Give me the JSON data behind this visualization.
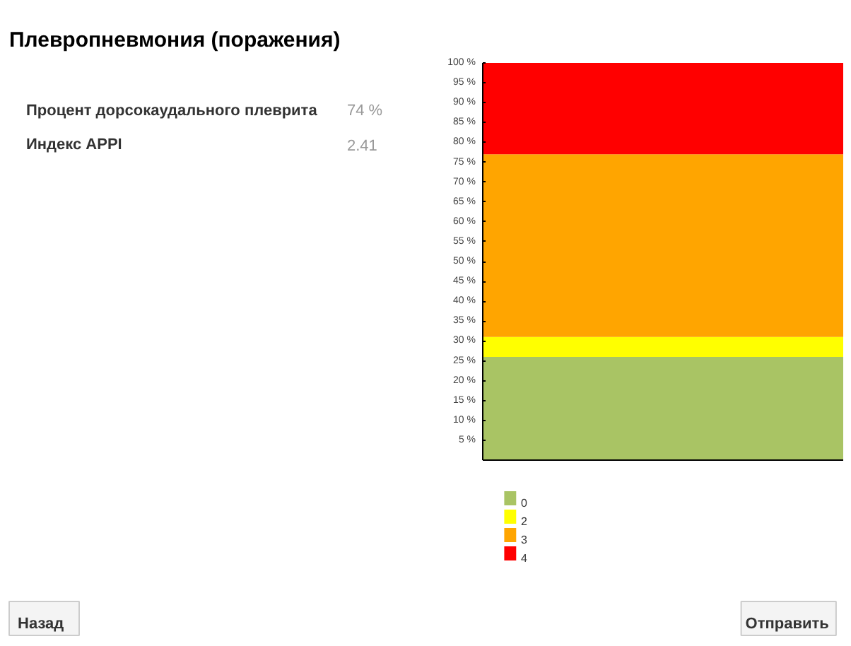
{
  "chart_data": {
    "type": "bar",
    "title": "Плевропневмония (поражения)",
    "categories": [
      null
    ],
    "stacked": true,
    "series": [
      {
        "name": "0",
        "color": "#a9c464",
        "values": [
          26
        ]
      },
      {
        "name": "2",
        "color": "#ffff00",
        "values": [
          5
        ]
      },
      {
        "name": "3",
        "color": "#ffa500",
        "values": [
          46
        ]
      },
      {
        "name": "4",
        "color": "#ff0000",
        "values": [
          23
        ]
      }
    ],
    "ylim": [
      0,
      100
    ],
    "yticks": [
      {
        "value": 5,
        "label": "5 %"
      },
      {
        "value": 10,
        "label": "10 %"
      },
      {
        "value": 15,
        "label": "15 %"
      },
      {
        "value": 20,
        "label": "20 %"
      },
      {
        "value": 25,
        "label": "25 %"
      },
      {
        "value": 30,
        "label": "30 %"
      },
      {
        "value": 35,
        "label": "35 %"
      },
      {
        "value": 40,
        "label": "40 %"
      },
      {
        "value": 45,
        "label": "45 %"
      },
      {
        "value": 50,
        "label": "50 %"
      },
      {
        "value": 55,
        "label": "55 %"
      },
      {
        "value": 60,
        "label": "60 %"
      },
      {
        "value": 65,
        "label": "65 %"
      },
      {
        "value": 70,
        "label": "70 %"
      },
      {
        "value": 75,
        "label": "75 %"
      },
      {
        "value": 80,
        "label": "80 %"
      },
      {
        "value": 85,
        "label": "85 %"
      },
      {
        "value": 90,
        "label": "90 %"
      },
      {
        "value": 95,
        "label": "95 %"
      },
      {
        "value": 100,
        "label": "100 %"
      }
    ],
    "legend": "bottom left",
    "grid": false,
    "annotations": [
      "Процент дорсокаудального плеврита",
      "74 %",
      "Индекс APPI",
      "2.41",
      "Назад",
      "Отправить"
    ]
  }
}
